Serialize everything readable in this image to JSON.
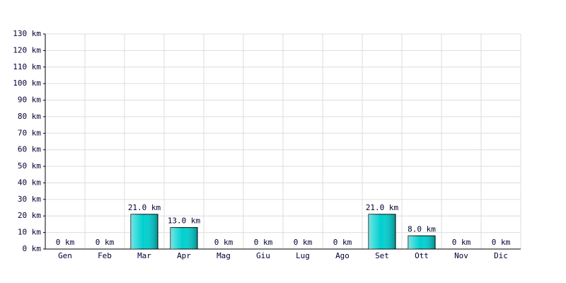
{
  "chart_data": {
    "type": "bar",
    "categories": [
      "Gen",
      "Feb",
      "Mar",
      "Apr",
      "Mag",
      "Giu",
      "Lug",
      "Ago",
      "Set",
      "Ott",
      "Nov",
      "Dic"
    ],
    "values": [
      0,
      0,
      21,
      13,
      0,
      0,
      0,
      0,
      21,
      8,
      0,
      0
    ],
    "value_labels": [
      "0 km",
      "0 km",
      "21.0 km",
      "13.0 km",
      "0 km",
      "0 km",
      "0 km",
      "0 km",
      "21.0 km",
      "8.0 km",
      "0 km",
      "0 km"
    ],
    "color": "#00d0d0",
    "ylim": [
      0,
      130
    ],
    "yticks": [
      {
        "value": 0,
        "label": "0 km"
      },
      {
        "value": 10,
        "label": "10 km"
      },
      {
        "value": 20,
        "label": "20 km"
      },
      {
        "value": 30,
        "label": "30 km"
      },
      {
        "value": 40,
        "label": "40 km"
      },
      {
        "value": 50,
        "label": "50 km"
      },
      {
        "value": 60,
        "label": "60 km"
      },
      {
        "value": 70,
        "label": "70 km"
      },
      {
        "value": 80,
        "label": "80 km"
      },
      {
        "value": 90,
        "label": "90 km"
      },
      {
        "value": 100,
        "label": "100 km"
      },
      {
        "value": 110,
        "label": "110 km"
      },
      {
        "value": 120,
        "label": "120 km"
      },
      {
        "value": 130,
        "label": "130 km"
      }
    ],
    "grid": true
  }
}
